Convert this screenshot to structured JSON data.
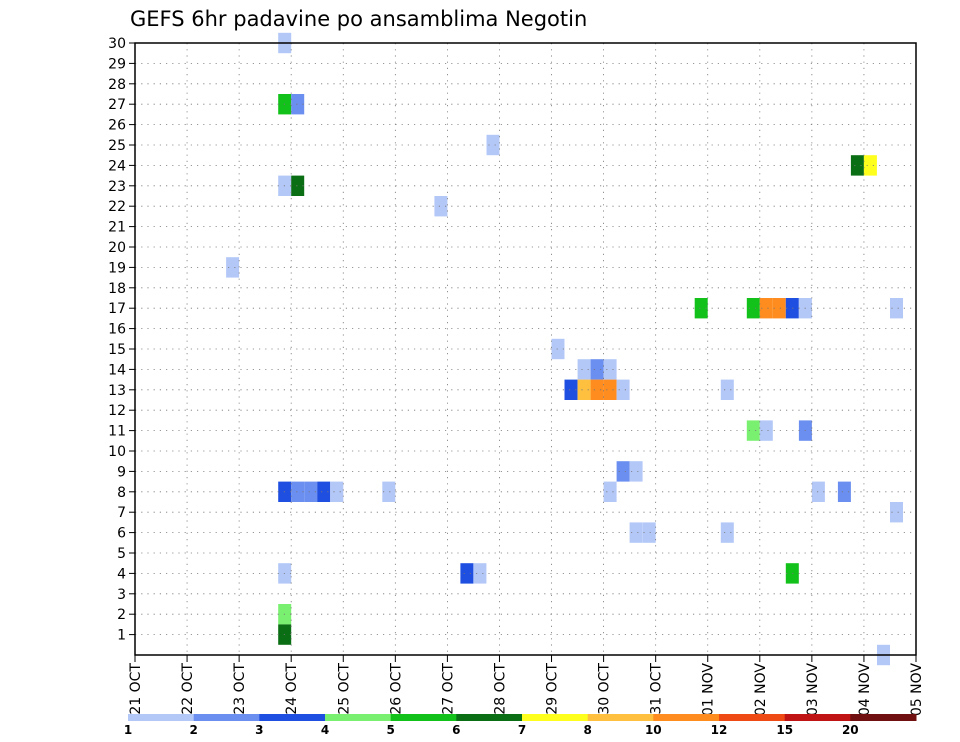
{
  "chart_data": {
    "type": "heatmap",
    "title": "GEFS 6hr padavine po ansamblima Negotin",
    "x_tick_labels": [
      "21 OCT",
      "22 OCT",
      "23 OCT",
      "24 OCT",
      "25 OCT",
      "26 OCT",
      "27 OCT",
      "28 OCT",
      "29 OCT",
      "30 OCT",
      "31 OCT",
      "01 NOV",
      "02 NOV",
      "03 NOV",
      "04 NOV",
      "05 NOV"
    ],
    "y_tick_labels": [
      1,
      2,
      3,
      4,
      5,
      6,
      7,
      8,
      9,
      10,
      11,
      12,
      13,
      14,
      15,
      16,
      17,
      18,
      19,
      20,
      21,
      22,
      23,
      24,
      25,
      26,
      27,
      28,
      29,
      30
    ],
    "ylim": [
      0,
      30
    ],
    "grid": true,
    "legend": {
      "position": "bottom",
      "levels": [
        "1",
        "2",
        "3",
        "4",
        "5",
        "6",
        "7",
        "8",
        "10",
        "12",
        "15",
        "20"
      ],
      "colors": [
        "#b4c8f8",
        "#6b8ff0",
        "#1f4fe0",
        "#7af070",
        "#12c21a",
        "#0a6e14",
        "#ffff1e",
        "#ffc040",
        "#ff8c1e",
        "#f04a14",
        "#c01414",
        "#701010"
      ]
    },
    "cells": [
      {
        "member": 30,
        "day": 2.75,
        "v": 1.5
      },
      {
        "member": 27,
        "day": 2.75,
        "v": 5.5
      },
      {
        "member": 27,
        "day": 3.0,
        "v": 2.5
      },
      {
        "member": 25,
        "day": 6.75,
        "v": 1.5
      },
      {
        "member": 24,
        "day": 13.75,
        "v": 6.5
      },
      {
        "member": 24,
        "day": 14.0,
        "v": 7.5
      },
      {
        "member": 23,
        "day": 2.75,
        "v": 1.5
      },
      {
        "member": 23,
        "day": 3.0,
        "v": 6.5
      },
      {
        "member": 22,
        "day": 5.75,
        "v": 1.5
      },
      {
        "member": 19,
        "day": 1.75,
        "v": 1.5
      },
      {
        "member": 17,
        "day": 10.75,
        "v": 5.5
      },
      {
        "member": 17,
        "day": 11.75,
        "v": 5.5
      },
      {
        "member": 17,
        "day": 12.0,
        "v": 11
      },
      {
        "member": 17,
        "day": 12.25,
        "v": 11
      },
      {
        "member": 17,
        "day": 12.5,
        "v": 3.5
      },
      {
        "member": 17,
        "day": 12.75,
        "v": 1.5
      },
      {
        "member": 17,
        "day": 14.5,
        "v": 1.5
      },
      {
        "member": 15,
        "day": 8.0,
        "v": 1.5
      },
      {
        "member": 14,
        "day": 8.5,
        "v": 1.5
      },
      {
        "member": 14,
        "day": 8.75,
        "v": 2.5
      },
      {
        "member": 14,
        "day": 9.0,
        "v": 1.5
      },
      {
        "member": 13,
        "day": 8.25,
        "v": 3.5
      },
      {
        "member": 13,
        "day": 8.5,
        "v": 9
      },
      {
        "member": 13,
        "day": 8.75,
        "v": 11
      },
      {
        "member": 13,
        "day": 9.0,
        "v": 11
      },
      {
        "member": 13,
        "day": 9.25,
        "v": 1.5
      },
      {
        "member": 13,
        "day": 11.25,
        "v": 1.5
      },
      {
        "member": 11,
        "day": 11.75,
        "v": 4.5
      },
      {
        "member": 11,
        "day": 12.0,
        "v": 1.5
      },
      {
        "member": 11,
        "day": 12.75,
        "v": 2.5
      },
      {
        "member": 9,
        "day": 9.25,
        "v": 2.5
      },
      {
        "member": 9,
        "day": 9.5,
        "v": 1.5
      },
      {
        "member": 8,
        "day": 2.75,
        "v": 3.5
      },
      {
        "member": 8,
        "day": 3.0,
        "v": 2.5
      },
      {
        "member": 8,
        "day": 3.25,
        "v": 2.5
      },
      {
        "member": 8,
        "day": 3.5,
        "v": 3.5
      },
      {
        "member": 8,
        "day": 3.75,
        "v": 1.5
      },
      {
        "member": 8,
        "day": 4.75,
        "v": 1.5
      },
      {
        "member": 8,
        "day": 9.0,
        "v": 1.5
      },
      {
        "member": 8,
        "day": 13.0,
        "v": 1.5
      },
      {
        "member": 8,
        "day": 13.5,
        "v": 2.5
      },
      {
        "member": 7,
        "day": 14.5,
        "v": 1.5
      },
      {
        "member": 6,
        "day": 9.5,
        "v": 1.5
      },
      {
        "member": 6,
        "day": 9.75,
        "v": 1.5
      },
      {
        "member": 6,
        "day": 11.25,
        "v": 1.5
      },
      {
        "member": 4,
        "day": 2.75,
        "v": 1.5
      },
      {
        "member": 4,
        "day": 6.25,
        "v": 3.5
      },
      {
        "member": 4,
        "day": 6.5,
        "v": 1.5
      },
      {
        "member": 4,
        "day": 12.5,
        "v": 5.5
      },
      {
        "member": 2,
        "day": 2.75,
        "v": 4.5
      },
      {
        "member": 1,
        "day": 2.75,
        "v": 6.5
      },
      {
        "member": 0,
        "day": 14.25,
        "v": 1.5
      }
    ]
  }
}
